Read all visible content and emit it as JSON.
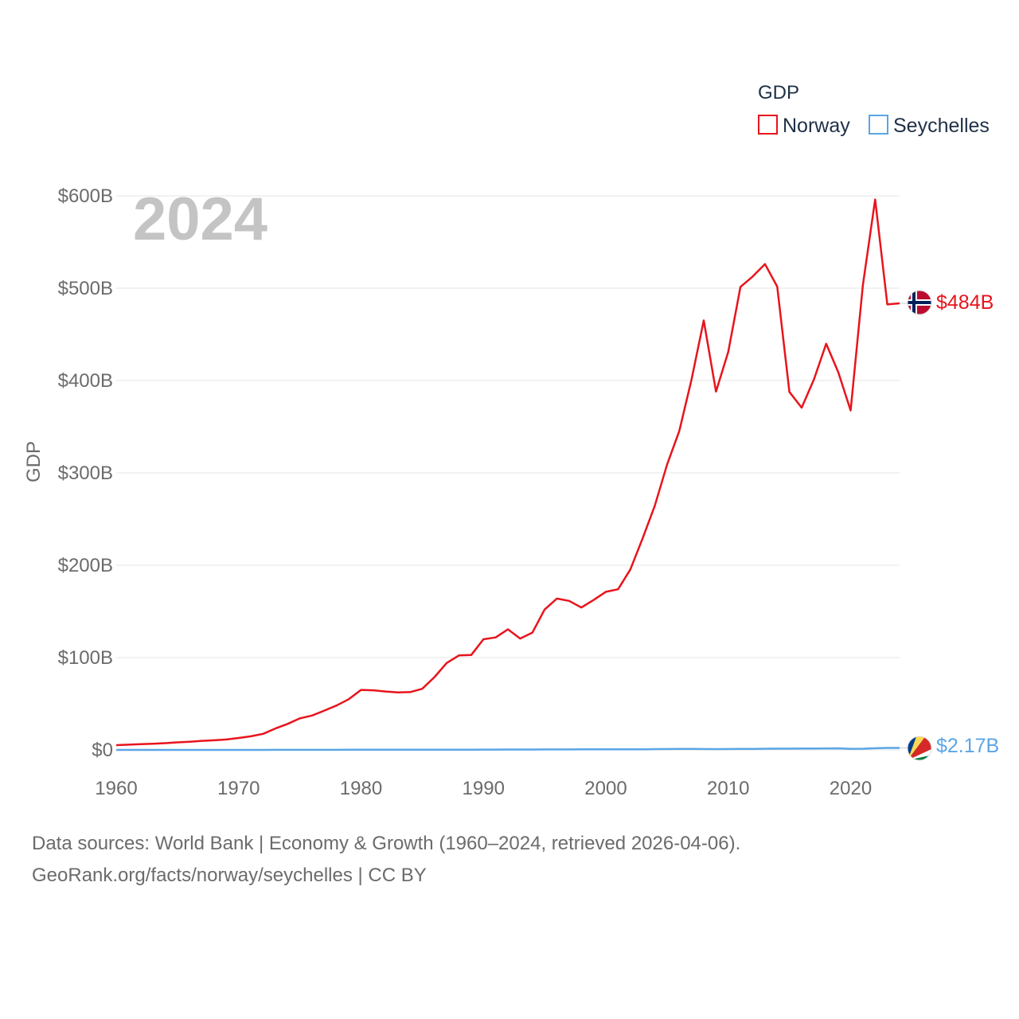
{
  "chart_data": {
    "type": "line",
    "year_label": "2024",
    "ylabel": "GDP",
    "legend_title": "GDP",
    "x_ticks": [
      "1960",
      "1970",
      "1980",
      "1990",
      "2000",
      "2010",
      "2020"
    ],
    "y_ticks": [
      "$0",
      "$100B",
      "$200B",
      "$300B",
      "$400B",
      "$500B",
      "$600B"
    ],
    "xlim": [
      1960,
      2024
    ],
    "ylim": [
      0,
      600
    ],
    "y_unit": "billion USD",
    "series": [
      {
        "name": "Norway",
        "color": "#e8141c",
        "end_label": "$484B",
        "x": [
          1960,
          1961,
          1962,
          1963,
          1964,
          1965,
          1966,
          1967,
          1968,
          1969,
          1970,
          1971,
          1972,
          1973,
          1974,
          1975,
          1976,
          1977,
          1978,
          1979,
          1980,
          1981,
          1982,
          1983,
          1984,
          1985,
          1986,
          1987,
          1988,
          1989,
          1990,
          1991,
          1992,
          1993,
          1994,
          1995,
          1996,
          1997,
          1998,
          1999,
          2000,
          2001,
          2002,
          2003,
          2004,
          2005,
          2006,
          2007,
          2008,
          2009,
          2010,
          2011,
          2012,
          2013,
          2014,
          2015,
          2016,
          2017,
          2018,
          2019,
          2020,
          2021,
          2022,
          2023,
          2024
        ],
        "values": [
          5.2,
          5.7,
          6.2,
          6.6,
          7.3,
          8.2,
          8.9,
          9.8,
          10.4,
          11.3,
          12.9,
          14.7,
          17.4,
          23.2,
          28.2,
          34.1,
          37.2,
          42.6,
          48.1,
          54.9,
          65.0,
          64.6,
          63.3,
          62.3,
          62.6,
          66.2,
          78.9,
          94.1,
          102.3,
          102.8,
          119.8,
          121.8,
          130.6,
          120.6,
          127.1,
          152.0,
          163.9,
          161.4,
          154.2,
          162.3,
          171.2,
          174.0,
          195.4,
          228.8,
          264.4,
          308.9,
          345.4,
          400.9,
          465.1,
          388.0,
          431.1,
          501.4,
          512.7,
          526.1,
          501.7,
          387.7,
          370.6,
          401.2,
          439.8,
          408.7,
          367.6,
          503.4,
          596.0,
          482.4,
          483.6
        ]
      },
      {
        "name": "Seychelles",
        "color": "#5aa6e6",
        "end_label": "$2.17B",
        "x": [
          1960,
          1961,
          1962,
          1963,
          1964,
          1965,
          1966,
          1967,
          1968,
          1969,
          1970,
          1971,
          1972,
          1973,
          1974,
          1975,
          1976,
          1977,
          1978,
          1979,
          1980,
          1981,
          1982,
          1983,
          1984,
          1985,
          1986,
          1987,
          1988,
          1989,
          1990,
          1991,
          1992,
          1993,
          1994,
          1995,
          1996,
          1997,
          1998,
          1999,
          2000,
          2001,
          2002,
          2003,
          2004,
          2005,
          2006,
          2007,
          2008,
          2009,
          2010,
          2011,
          2012,
          2013,
          2014,
          2015,
          2016,
          2017,
          2018,
          2019,
          2020,
          2021,
          2022,
          2023,
          2024
        ],
        "values": [
          0.01,
          0.01,
          0.01,
          0.01,
          0.01,
          0.01,
          0.01,
          0.01,
          0.01,
          0.02,
          0.02,
          0.03,
          0.04,
          0.05,
          0.06,
          0.07,
          0.08,
          0.1,
          0.12,
          0.15,
          0.15,
          0.16,
          0.17,
          0.17,
          0.17,
          0.18,
          0.21,
          0.25,
          0.28,
          0.3,
          0.37,
          0.37,
          0.43,
          0.47,
          0.47,
          0.51,
          0.51,
          0.56,
          0.61,
          0.62,
          0.61,
          0.62,
          0.7,
          0.71,
          0.84,
          0.92,
          1.02,
          1.03,
          0.97,
          0.85,
          0.97,
          1.07,
          1.06,
          1.33,
          1.41,
          1.38,
          1.47,
          1.58,
          1.65,
          1.7,
          1.24,
          1.29,
          1.81,
          2.14,
          2.17
        ]
      }
    ]
  },
  "source": {
    "line1": "Data sources: World Bank | Economy & Growth (1960–2024, retrieved 2026-04-06).",
    "line2": "GeoRank.org/facts/norway/seychelles | CC BY"
  },
  "flags": {
    "norway": {
      "name": "norway-flag-icon",
      "red": "#ba0c2f",
      "white": "#ffffff",
      "blue": "#00205b"
    },
    "seychelles": {
      "name": "seychelles-flag-icon",
      "blue": "#003d88",
      "yellow": "#fcd856",
      "red": "#d62828",
      "white": "#ffffff",
      "green": "#007a3d"
    }
  }
}
